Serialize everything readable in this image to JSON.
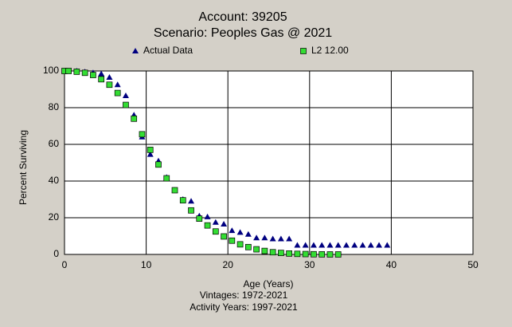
{
  "chart_data": {
    "type": "scatter",
    "title": "Account: 39205",
    "subtitle": "Scenario: Peoples Gas @ 2021",
    "x_label": "Age (Years)",
    "y_label": "Percent Surviving",
    "notes": [
      "Vintages: 1972-2021",
      "Activity Years: 1997-2021"
    ],
    "xlim": [
      0,
      50
    ],
    "xticks": [
      0,
      10,
      20,
      30,
      40,
      50
    ],
    "ylim": [
      0,
      100
    ],
    "yticks": [
      0,
      20,
      40,
      60,
      80,
      100
    ],
    "grid": true,
    "series": [
      {
        "name": "Actual Data",
        "color": "#000080",
        "marker": "triangle",
        "x": [
          0,
          0.5,
          1.5,
          2.5,
          3.5,
          4.5,
          5.5,
          6.5,
          7.5,
          8.5,
          9.5,
          10.5,
          11.5,
          12.5,
          13.5,
          14.5,
          15.5,
          16.5,
          17.5,
          18.5,
          19.5,
          20.5,
          21.5,
          22.5,
          23.5,
          24.5,
          25.5,
          26.5,
          27.5,
          28.5,
          29.5,
          30.5,
          31.5,
          32.5,
          33.5,
          34.5,
          35.5,
          36.5,
          37.5,
          38.5,
          39.5
        ],
        "values": [
          100,
          100,
          100,
          99.5,
          99,
          98.5,
          96.5,
          92.5,
          86.5,
          76,
          64,
          54.5,
          51,
          42,
          35,
          30,
          29,
          21,
          20.5,
          17.5,
          16.5,
          13,
          12,
          11,
          9,
          9,
          8.5,
          8.5,
          8.5,
          5,
          5,
          5,
          5,
          5,
          5,
          5,
          5,
          5,
          5,
          5,
          5
        ]
      },
      {
        "name": "L2 12.00",
        "color": "#33dd33",
        "marker": "square",
        "x": [
          0,
          0.5,
          1.5,
          2.5,
          3.5,
          4.5,
          5.5,
          6.5,
          7.5,
          8.5,
          9.5,
          10.5,
          11.5,
          12.5,
          13.5,
          14.5,
          15.5,
          16.5,
          17.5,
          18.5,
          19.5,
          20.5,
          21.5,
          22.5,
          23.5,
          24.5,
          25.5,
          26.5,
          27.5,
          28.5,
          29.5,
          30.5,
          31.5,
          32.5,
          33.5
        ],
        "values": [
          100,
          100,
          99.6,
          99,
          97.8,
          95.5,
          92.5,
          88,
          81.5,
          74,
          65.5,
          57,
          49,
          41.5,
          35,
          29.5,
          24,
          19.5,
          15.8,
          12.5,
          9.8,
          7.5,
          5.5,
          4,
          2.8,
          1.9,
          1.2,
          0.8,
          0.5,
          0.3,
          0.2,
          0.1,
          0.05,
          0,
          0
        ]
      }
    ]
  }
}
